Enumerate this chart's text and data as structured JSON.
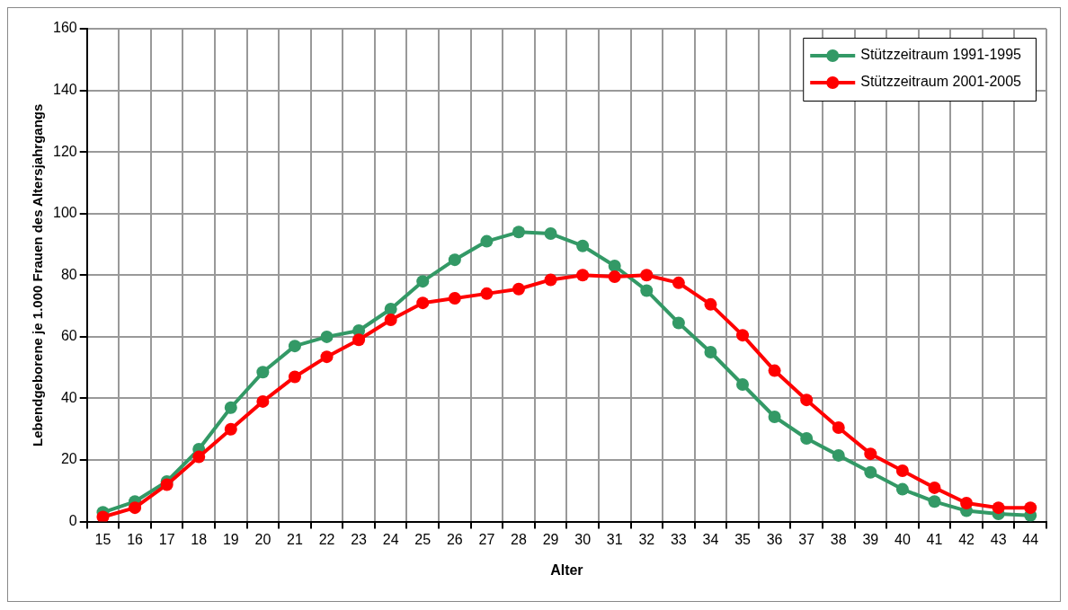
{
  "chart_data": {
    "type": "line",
    "xlabel": "Alter",
    "ylabel": "Lebendgeborene je 1.000 Frauen des Altersjahrgangs",
    "categories": [
      "15",
      "16",
      "17",
      "18",
      "19",
      "20",
      "21",
      "22",
      "23",
      "24",
      "25",
      "26",
      "27",
      "28",
      "29",
      "30",
      "31",
      "32",
      "33",
      "34",
      "35",
      "36",
      "37",
      "38",
      "39",
      "40",
      "41",
      "42",
      "43",
      "44"
    ],
    "series": [
      {
        "name": "Stützzeitraum 1991-1995",
        "color": "#339966",
        "values": [
          3,
          6.5,
          13,
          23.5,
          37,
          48.5,
          57,
          60,
          62,
          69,
          78,
          85,
          91,
          94,
          93.5,
          89.5,
          83,
          75,
          64.5,
          55,
          44.5,
          34,
          27,
          21.5,
          16,
          10.5,
          6.5,
          3.5,
          2.5,
          2
        ]
      },
      {
        "name": "Stützzeitraum 2001-2005",
        "color": "#ff0000",
        "values": [
          1.5,
          4.5,
          12,
          21,
          30,
          39,
          47,
          53.5,
          59,
          65.5,
          71,
          72.5,
          74,
          75.5,
          78.5,
          80,
          79.5,
          80,
          77.5,
          70.5,
          60.5,
          49,
          39.5,
          30.5,
          22,
          16.5,
          11,
          6,
          4.5,
          4.5
        ]
      }
    ],
    "ylim": [
      0,
      160
    ],
    "yticks": [
      0,
      20,
      40,
      60,
      80,
      100,
      120,
      140,
      160
    ],
    "grid": true,
    "legend": "top right",
    "marker": "circle",
    "line_style": "solid"
  }
}
